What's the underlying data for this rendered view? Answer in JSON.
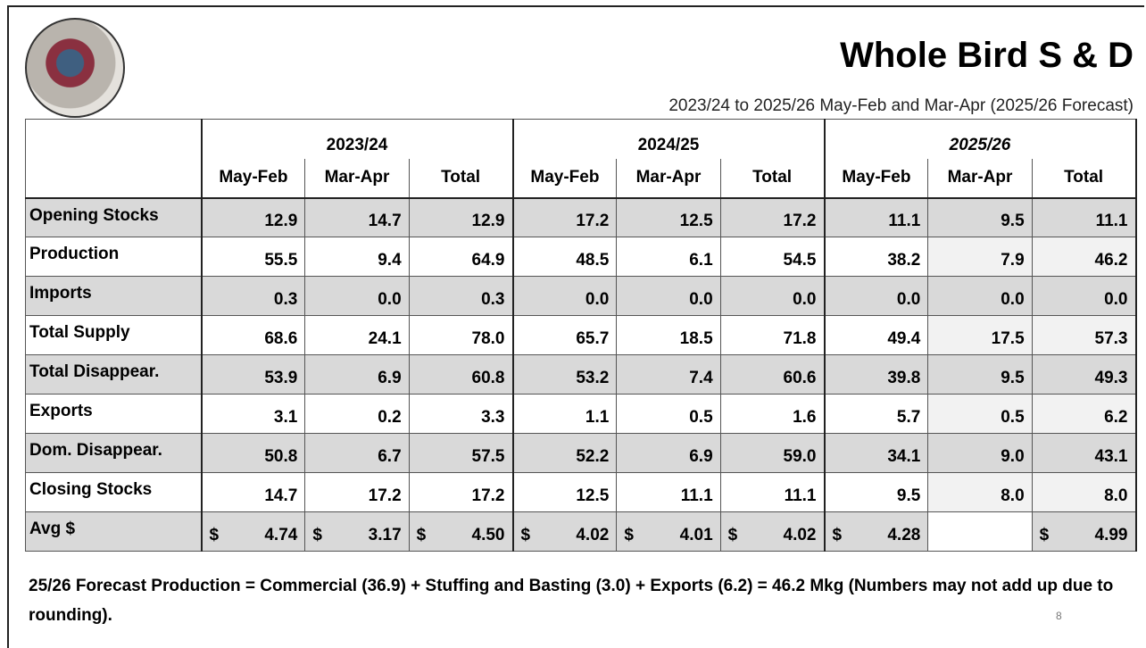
{
  "header": {
    "title": "Whole Bird S & D",
    "subtitle": "2023/24 to 2025/26 May-Feb and Mar-Apr (2025/26 Forecast)"
  },
  "table": {
    "groups": [
      "2023/24",
      "2024/25",
      "2025/26"
    ],
    "columns": [
      "May-Feb",
      "Mar-Apr",
      "Total",
      "May-Feb",
      "Mar-Apr",
      "Total",
      "May-Feb",
      "Mar-Apr",
      "Total"
    ],
    "rows": [
      {
        "label": "Opening Stocks",
        "cells": [
          "12.9",
          "14.7",
          "12.9",
          "17.2",
          "12.5",
          "17.2",
          "11.1",
          "9.5",
          "11.1"
        ]
      },
      {
        "label": "Production",
        "cells": [
          "55.5",
          "9.4",
          "64.9",
          "48.5",
          "6.1",
          "54.5",
          "38.2",
          "7.9",
          "46.2"
        ]
      },
      {
        "label": "Imports",
        "cells": [
          "0.3",
          "0.0",
          "0.3",
          "0.0",
          "0.0",
          "0.0",
          "0.0",
          "0.0",
          "0.0"
        ]
      },
      {
        "label": "Total Supply",
        "cells": [
          "68.6",
          "24.1",
          "78.0",
          "65.7",
          "18.5",
          "71.8",
          "49.4",
          "17.5",
          "57.3"
        ]
      },
      {
        "label": "Total Disappear.",
        "cells": [
          "53.9",
          "6.9",
          "60.8",
          "53.2",
          "7.4",
          "60.6",
          "39.8",
          "9.5",
          "49.3"
        ]
      },
      {
        "label": "Exports",
        "cells": [
          "3.1",
          "0.2",
          "3.3",
          "1.1",
          "0.5",
          "1.6",
          "5.7",
          "0.5",
          "6.2"
        ]
      },
      {
        "label": "Dom. Disappear.",
        "cells": [
          "50.8",
          "6.7",
          "57.5",
          "52.2",
          "6.9",
          "59.0",
          "34.1",
          "9.0",
          "43.1"
        ]
      },
      {
        "label": "Closing Stocks",
        "cells": [
          "14.7",
          "17.2",
          "17.2",
          "12.5",
          "11.1",
          "11.1",
          "9.5",
          "8.0",
          "8.0"
        ]
      },
      {
        "label": "Avg $",
        "cells": [
          {
            "symbol": "$",
            "value": "4.74"
          },
          {
            "symbol": "$",
            "value": "3.17"
          },
          {
            "symbol": "$",
            "value": "4.50"
          },
          {
            "symbol": "$",
            "value": "4.02"
          },
          {
            "symbol": "$",
            "value": "4.01"
          },
          {
            "symbol": "$",
            "value": "4.02"
          },
          {
            "symbol": "$",
            "value": "4.28"
          },
          null,
          {
            "symbol": "$",
            "value": "4.99"
          }
        ]
      }
    ]
  },
  "footnote": "25/26 Forecast Production = Commercial (36.9) + Stuffing and Basting (3.0) + Exports (6.2) = 46.2 Mkg (Numbers may not add up due to rounding).",
  "page_number": "8"
}
